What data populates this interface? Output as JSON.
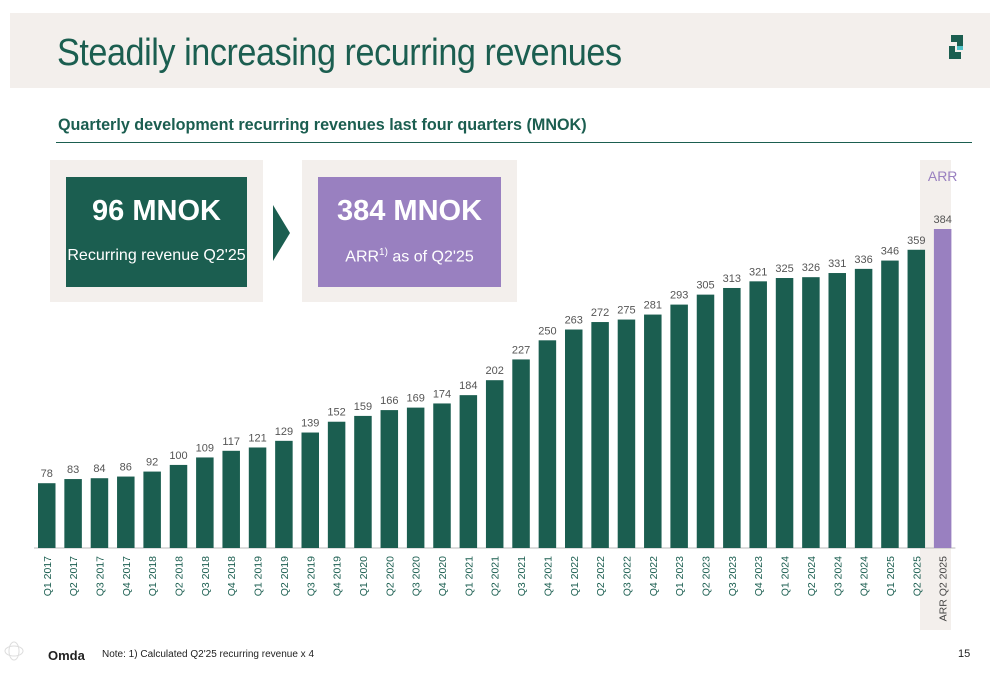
{
  "title": "Steadily increasing recurring revenues",
  "subtitle": "Quarterly development recurring revenues last four quarters (MNOK)",
  "kpis": [
    {
      "value": "96 MNOK",
      "label": "Recurring revenue Q2'25",
      "color": "#1b5e50"
    },
    {
      "value": "384 MNOK",
      "label_prefix": "ARR",
      "label_sup": "1)",
      "label_suffix": " as of Q2'25",
      "color": "#9980c0"
    }
  ],
  "chart_data": {
    "type": "bar",
    "categories": [
      "Q1 2017",
      "Q2 2017",
      "Q3 2017",
      "Q4 2017",
      "Q1 2018",
      "Q2 2018",
      "Q3 2018",
      "Q4 2018",
      "Q1 2019",
      "Q2 2019",
      "Q3 2019",
      "Q4 2019",
      "Q1 2020",
      "Q2 2020",
      "Q3 2020",
      "Q4 2020",
      "Q1 2021",
      "Q2 2021",
      "Q3 2021",
      "Q4 2021",
      "Q1 2022",
      "Q2 2022",
      "Q3 2022",
      "Q4 2022",
      "Q1 2023",
      "Q2 2023",
      "Q3 2023",
      "Q4 2023",
      "Q1 2024",
      "Q2 2024",
      "Q3 2024",
      "Q4 2024",
      "Q1 2025",
      "Q2 2025",
      "ARR Q2 2025"
    ],
    "values": [
      78,
      83,
      84,
      86,
      92,
      100,
      109,
      117,
      121,
      129,
      139,
      152,
      159,
      166,
      169,
      174,
      184,
      202,
      227,
      250,
      263,
      272,
      275,
      281,
      293,
      305,
      313,
      321,
      325,
      326,
      331,
      336,
      346,
      359,
      384
    ],
    "highlight_label": "ARR",
    "bar_color": "#1b5e50",
    "highlight_color": "#9980c0",
    "title": "",
    "xlabel": "",
    "ylabel": "",
    "ylim": [
      0,
      384
    ],
    "grid": false,
    "legend": "none"
  },
  "footer": {
    "brand": "Omda",
    "note": "Note: 1) Calculated Q2'25 recurring revenue x 4",
    "page_number": "15"
  },
  "colors": {
    "accent": "#1b5e50",
    "highlight": "#9980c0",
    "panel_bg": "#f3efec"
  }
}
